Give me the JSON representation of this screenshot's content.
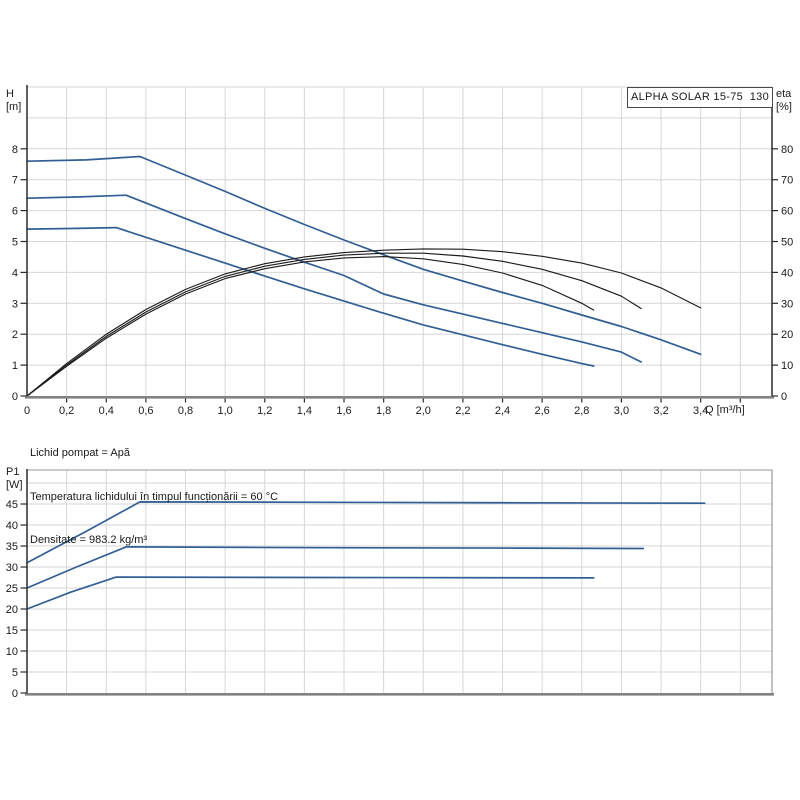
{
  "header": {
    "title": "ALPHA SOLAR 15-75  130"
  },
  "labels": {
    "h_axis": "H",
    "h_unit": "[m]",
    "eta_axis": "eta",
    "eta_unit": "[%]",
    "q_axis": "Q [m³/h]",
    "p_axis": "P1",
    "p_unit": "[W]"
  },
  "info_lines": [
    "Lichid pompat = Apă",
    "Temperatura lichidului în timpul funcționării = 60 °C",
    "Densitate = 983.2 kg/m³"
  ],
  "colors": {
    "curve_blue": "#315f94",
    "curve_black": "#1c1c1c",
    "grid": "#d6d6da",
    "axis_dark": "#2b2b2b",
    "axis_gray": "#828282",
    "border_gray": "#9a9a9a",
    "text": "#1a1a1a"
  },
  "chart_data": [
    {
      "type": "line",
      "title": "ALPHA SOLAR 15-75  130",
      "xlabel": "Q [m³/h]",
      "ylabel_left": "H [m]",
      "ylabel_right": "eta [%]",
      "xlim": [
        0,
        3.76
      ],
      "ylim_left": [
        0,
        10
      ],
      "ylim_right": [
        0,
        100
      ],
      "grid": true,
      "x_tick_step": 0.2,
      "x_tick_labels": [
        "0",
        "0,2",
        "0,4",
        "0,6",
        "0,8",
        "1,0",
        "1,2",
        "1,4",
        "1,6",
        "1,8",
        "2,0",
        "2,2",
        "2,4",
        "2,6",
        "2,8",
        "3,0",
        "3,2",
        "3,4"
      ],
      "y_ticks_left": [
        0,
        1,
        2,
        3,
        4,
        5,
        6,
        7,
        8
      ],
      "y_ticks_right": [
        0,
        10,
        20,
        30,
        40,
        50,
        60,
        70,
        80
      ],
      "series": [
        {
          "name": "head-curve-speed-3",
          "axis": "left",
          "color": "#315f94",
          "width": 1.7,
          "points": [
            [
              0,
              7.6
            ],
            [
              0.3,
              7.64
            ],
            [
              0.57,
              7.75
            ],
            [
              0.8,
              7.15
            ],
            [
              1.0,
              6.62
            ],
            [
              1.2,
              6.07
            ],
            [
              1.4,
              5.55
            ],
            [
              1.6,
              5.05
            ],
            [
              1.8,
              4.57
            ],
            [
              2.0,
              4.1
            ],
            [
              2.2,
              3.72
            ],
            [
              2.4,
              3.35
            ],
            [
              2.6,
              3.0
            ],
            [
              2.8,
              2.62
            ],
            [
              3.0,
              2.25
            ],
            [
              3.2,
              1.82
            ],
            [
              3.4,
              1.35
            ]
          ]
        },
        {
          "name": "head-curve-speed-2",
          "axis": "left",
          "color": "#315f94",
          "width": 1.7,
          "points": [
            [
              0,
              6.4
            ],
            [
              0.25,
              6.44
            ],
            [
              0.5,
              6.5
            ],
            [
              0.8,
              5.74
            ],
            [
              1.0,
              5.25
            ],
            [
              1.2,
              4.78
            ],
            [
              1.4,
              4.33
            ],
            [
              1.6,
              3.9
            ],
            [
              1.8,
              3.3
            ],
            [
              2.0,
              2.95
            ],
            [
              2.2,
              2.65
            ],
            [
              2.4,
              2.35
            ],
            [
              2.6,
              2.05
            ],
            [
              2.8,
              1.75
            ],
            [
              3.0,
              1.42
            ],
            [
              3.1,
              1.1
            ]
          ]
        },
        {
          "name": "head-curve-speed-1",
          "axis": "left",
          "color": "#315f94",
          "width": 1.7,
          "points": [
            [
              0,
              5.4
            ],
            [
              0.22,
              5.42
            ],
            [
              0.45,
              5.45
            ],
            [
              0.8,
              4.72
            ],
            [
              1.0,
              4.3
            ],
            [
              1.2,
              3.88
            ],
            [
              1.4,
              3.47
            ],
            [
              1.6,
              3.07
            ],
            [
              1.8,
              2.68
            ],
            [
              2.0,
              2.3
            ],
            [
              2.2,
              1.98
            ],
            [
              2.4,
              1.66
            ],
            [
              2.6,
              1.35
            ],
            [
              2.8,
              1.05
            ],
            [
              2.86,
              0.97
            ]
          ]
        },
        {
          "name": "eta-curve-speed-3",
          "axis": "right",
          "color": "#1c1c1c",
          "width": 1.15,
          "points": [
            [
              0,
              0
            ],
            [
              0.2,
              10.5
            ],
            [
              0.4,
              20
            ],
            [
              0.6,
              28
            ],
            [
              0.8,
              34.5
            ],
            [
              1.0,
              39.5
            ],
            [
              1.2,
              42.8
            ],
            [
              1.4,
              45
            ],
            [
              1.6,
              46.4
            ],
            [
              1.8,
              47.2
            ],
            [
              2.0,
              47.6
            ],
            [
              2.2,
              47.5
            ],
            [
              2.4,
              46.7
            ],
            [
              2.6,
              45.2
            ],
            [
              2.8,
              43
            ],
            [
              3.0,
              39.8
            ],
            [
              3.2,
              35
            ],
            [
              3.4,
              28.5
            ]
          ]
        },
        {
          "name": "eta-curve-speed-2",
          "axis": "right",
          "color": "#1c1c1c",
          "width": 1.15,
          "points": [
            [
              0,
              0
            ],
            [
              0.2,
              10
            ],
            [
              0.4,
              19.3
            ],
            [
              0.6,
              27.2
            ],
            [
              0.8,
              33.7
            ],
            [
              1.0,
              38.7
            ],
            [
              1.2,
              42
            ],
            [
              1.4,
              44.2
            ],
            [
              1.6,
              45.6
            ],
            [
              1.8,
              46.2
            ],
            [
              2.0,
              46.2
            ],
            [
              2.2,
              45.3
            ],
            [
              2.4,
              43.6
            ],
            [
              2.6,
              41
            ],
            [
              2.8,
              37.3
            ],
            [
              3.0,
              32.3
            ],
            [
              3.1,
              28.3
            ]
          ]
        },
        {
          "name": "eta-curve-speed-1",
          "axis": "right",
          "color": "#1c1c1c",
          "width": 1.15,
          "points": [
            [
              0,
              0
            ],
            [
              0.2,
              9.6
            ],
            [
              0.4,
              18.7
            ],
            [
              0.6,
              26.5
            ],
            [
              0.8,
              33
            ],
            [
              1.0,
              38
            ],
            [
              1.2,
              41.2
            ],
            [
              1.4,
              43.4
            ],
            [
              1.6,
              44.7
            ],
            [
              1.8,
              45.1
            ],
            [
              2.0,
              44.4
            ],
            [
              2.2,
              42.6
            ],
            [
              2.4,
              39.8
            ],
            [
              2.6,
              35.8
            ],
            [
              2.8,
              30
            ],
            [
              2.86,
              27.8
            ]
          ]
        }
      ]
    },
    {
      "type": "line",
      "title": "",
      "xlabel": "",
      "ylabel_left": "P1 [W]",
      "xlim": [
        0,
        3.76
      ],
      "ylim": [
        0,
        53.1
      ],
      "grid": true,
      "x_grid_step": 0.2,
      "y_ticks": [
        0,
        5,
        10,
        15,
        20,
        25,
        30,
        35,
        40,
        45
      ],
      "y_grid_step": 5,
      "series": [
        {
          "name": "power-curve-speed-3",
          "color": "#315f94",
          "width": 1.7,
          "points": [
            [
              0,
              31
            ],
            [
              0.3,
              38.5
            ],
            [
              0.57,
              45.5
            ],
            [
              1.5,
              45.4
            ],
            [
              2.5,
              45.3
            ],
            [
              3.42,
              45.2
            ]
          ]
        },
        {
          "name": "power-curve-speed-2",
          "color": "#315f94",
          "width": 1.7,
          "points": [
            [
              0,
              25
            ],
            [
              0.25,
              30
            ],
            [
              0.5,
              34.8
            ],
            [
              1.5,
              34.6
            ],
            [
              2.5,
              34.5
            ],
            [
              3.11,
              34.4
            ]
          ]
        },
        {
          "name": "power-curve-speed-1",
          "color": "#315f94",
          "width": 1.7,
          "points": [
            [
              0,
              20
            ],
            [
              0.22,
              24
            ],
            [
              0.45,
              27.6
            ],
            [
              1.5,
              27.5
            ],
            [
              2.86,
              27.4
            ]
          ]
        }
      ]
    }
  ]
}
